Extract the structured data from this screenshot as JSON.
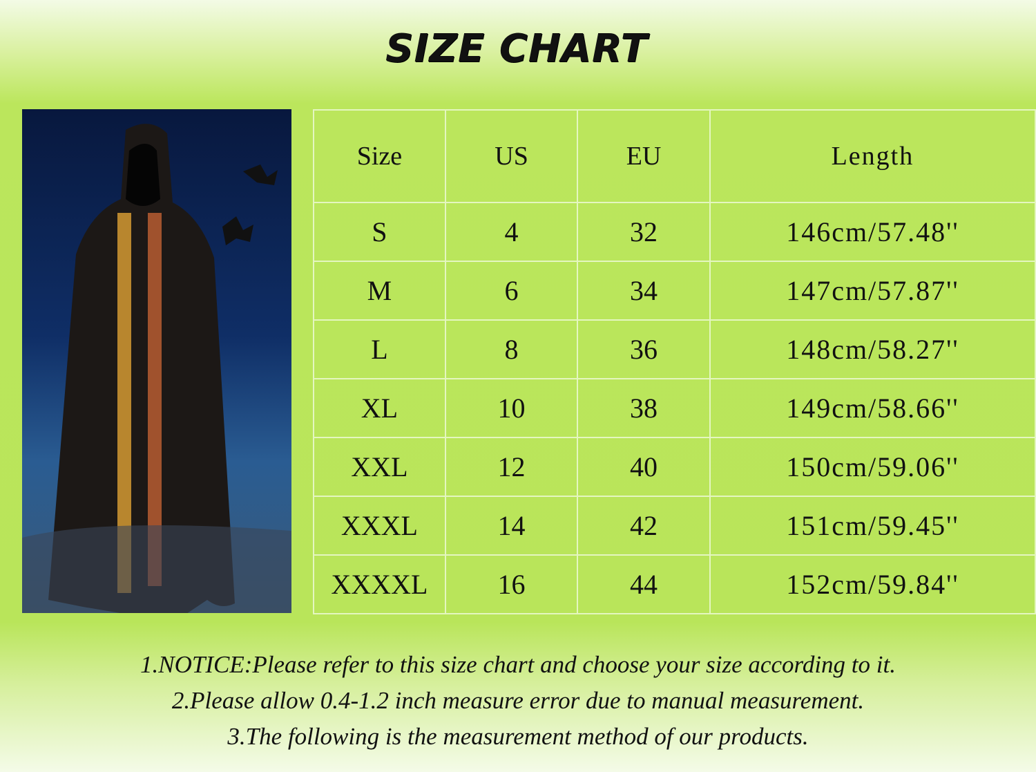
{
  "title": "SIZE CHART",
  "image": {
    "subject": "cloak-photo",
    "colors": {
      "sky": "#0c2456",
      "cloak": "#1a1614",
      "trim": "#b8862e"
    }
  },
  "table": {
    "headers": [
      "Size",
      "US",
      "EU",
      "Length"
    ],
    "rows": [
      [
        "S",
        "4",
        "32",
        "146cm/57.48''"
      ],
      [
        "M",
        "6",
        "34",
        "147cm/57.87''"
      ],
      [
        "L",
        "8",
        "36",
        "148cm/58.27''"
      ],
      [
        "XL",
        "10",
        "38",
        "149cm/58.66''"
      ],
      [
        "XXL",
        "12",
        "40",
        "150cm/59.06''"
      ],
      [
        "XXXL",
        "14",
        "42",
        "151cm/59.45''"
      ],
      [
        "XXXXL",
        "16",
        "44",
        "152cm/59.84''"
      ]
    ]
  },
  "notes": [
    "1.NOTICE:Please refer to this size chart and choose your size according to it.",
    "2.Please allow 0.4-1.2 inch measure error due to manual measurement.",
    "3.The following is the measurement method of our products."
  ],
  "colors": {
    "background": "#b9e55a",
    "grid": "#e4f6c0"
  }
}
